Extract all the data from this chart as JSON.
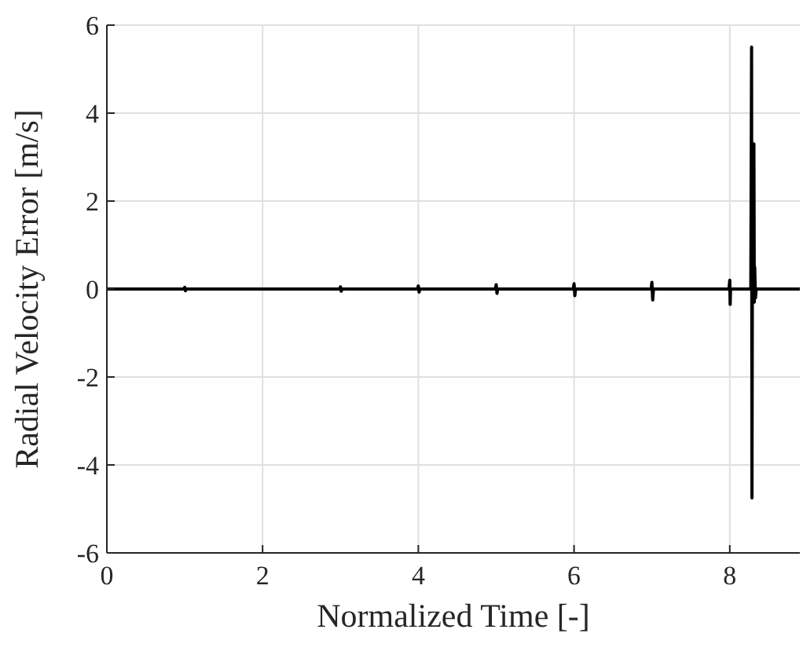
{
  "chart_data": {
    "type": "line",
    "xlabel": "Normalized Time [-]",
    "ylabel": "Radial Velocity Error [m/s]",
    "x": [
      0,
      0.99,
      1,
      1.01,
      1.02,
      2.99,
      3,
      3.01,
      3.02,
      3.99,
      4,
      4.01,
      4.02,
      4.99,
      5,
      5.01,
      5.02,
      5.99,
      6,
      6.01,
      6.02,
      6.99,
      7,
      7.01,
      7.02,
      7.99,
      8,
      8.005,
      8.01,
      8.27,
      8.28,
      8.285,
      8.29,
      8.31,
      8.315,
      8.32,
      8.33,
      8.34,
      8.9
    ],
    "series": [
      {
        "color": "#000000",
        "values": [
          0,
          0,
          0.04,
          -0.04,
          0,
          0,
          0.05,
          -0.05,
          0,
          0,
          0.07,
          -0.07,
          0,
          0,
          0.1,
          -0.1,
          0,
          0,
          0.12,
          -0.15,
          0,
          0,
          0.15,
          -0.25,
          0,
          0,
          0.2,
          -0.35,
          0,
          0,
          5.5,
          -4.75,
          0.2,
          3.3,
          -0.3,
          0.5,
          -0.2,
          0,
          0
        ]
      }
    ],
    "xlim": [
      0,
      8.9
    ],
    "ylim": [
      -6,
      6
    ],
    "xticks": [
      0,
      2,
      4,
      6,
      8
    ],
    "yticks": [
      -6,
      -4,
      -2,
      0,
      2,
      4,
      6
    ],
    "grid": true,
    "marker": "none",
    "line_style": "solid"
  }
}
